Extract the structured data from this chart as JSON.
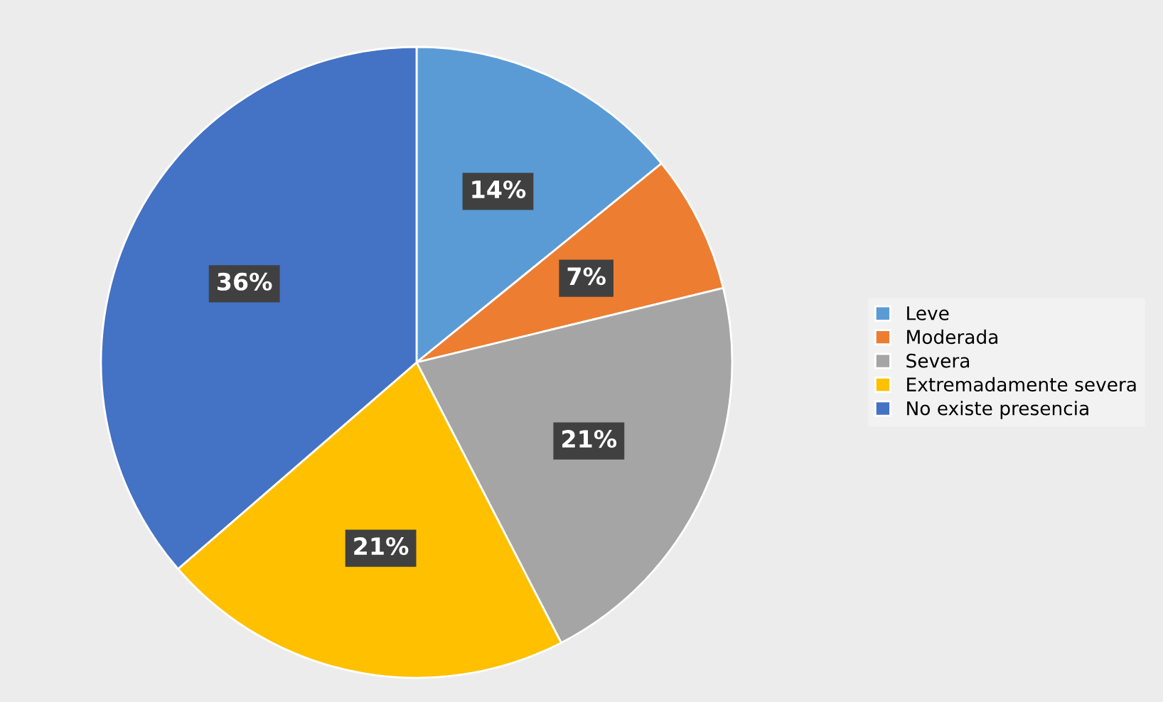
{
  "chart_data": {
    "type": "pie",
    "categories": [
      "Leve",
      "Moderada",
      "Severa",
      "Extremadamente severa",
      "No existe presencia"
    ],
    "values": [
      14,
      7,
      21,
      21,
      36
    ],
    "value_labels": [
      "14%",
      "7%",
      "21%",
      "21%",
      "36%"
    ],
    "colors": [
      "#5b9bd5",
      "#ed7d31",
      "#a5a5a5",
      "#ffc000",
      "#4472c4"
    ],
    "legend": "right"
  }
}
